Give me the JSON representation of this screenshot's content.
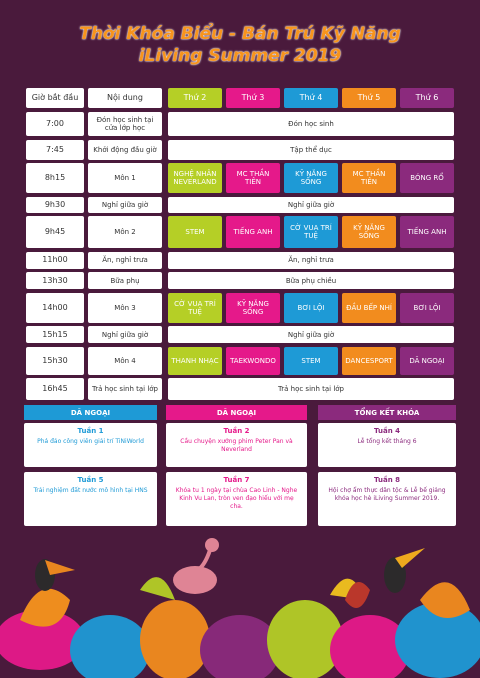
{
  "title": [
    "Thời Khóa Biểu - Bán Trú Kỹ Năng",
    "iLiving Summer 2019"
  ],
  "table": {
    "header": [
      "Giờ bắt đầu",
      "Nội dung",
      "Thứ 2",
      "Thứ 3",
      "Thứ 4",
      "Thứ 5",
      "Thứ 6"
    ],
    "rows": [
      {
        "time": "7:00",
        "content": "Đón học sinh tại cửa lớp học",
        "cells": [
          "Đón học sinh"
        ]
      },
      {
        "time": "7:45",
        "content": "Khởi động đầu giờ",
        "cells": [
          "Tập thể dục"
        ]
      },
      {
        "time": "8h15",
        "content": "Môn 1",
        "cells": [
          "NGHỆ NHÂN NEVERLAND",
          "MC THẦN TIÊN",
          "KỸ NĂNG SỐNG",
          "MC THẦN TIÊN",
          "BÓNG RỔ"
        ]
      },
      {
        "time": "9h30",
        "content": "Nghỉ giữa giờ",
        "cells": [
          "Nghỉ giữa giờ"
        ]
      },
      {
        "time": "9h45",
        "content": "Môn 2",
        "cells": [
          "STEM",
          "TIẾNG ANH",
          "CỜ VUA TRÍ TUỆ",
          "KỸ NĂNG SỐNG",
          "TIẾNG ANH"
        ]
      },
      {
        "time": "11h00",
        "content": "Ăn, nghỉ trưa",
        "cells": [
          "Ăn, nghỉ trưa"
        ]
      },
      {
        "time": "13h30",
        "content": "Bữa phụ",
        "cells": [
          "Bữa phụ chiều"
        ]
      },
      {
        "time": "14h00",
        "content": "Môn 3",
        "cells": [
          "CỜ VUA TRÍ TUỆ",
          "KỸ NĂNG SỐNG",
          "BƠI LỘI",
          "ĐẦU BẾP NHÍ",
          "BƠI LỘI"
        ]
      },
      {
        "time": "15h15",
        "content": "Nghỉ giữa giờ",
        "cells": [
          "Nghỉ giữa giờ"
        ]
      },
      {
        "time": "15h30",
        "content": "Môn 4",
        "cells": [
          "THANH NHẠC",
          "TAEKWONDO",
          "STEM",
          "DANCESPORT",
          "DÃ NGOẠI"
        ]
      },
      {
        "time": "16h45",
        "content": "Trả học sinh tại lớp",
        "cells": [
          "Trả học sinh tại lớp"
        ]
      }
    ]
  },
  "activities": [
    {
      "header": "DÃ NGOẠI",
      "weeks": [
        {
          "title": "Tuần 1",
          "text": "Phá đảo công viên giải trí TiNiWorld"
        },
        {
          "title": "Tuần 5",
          "text": "Trải nghiệm đất nước mô hình tại HNS"
        }
      ]
    },
    {
      "header": "DÃ NGOẠI",
      "weeks": [
        {
          "title": "Tuần 2",
          "text": "Cầu chuyện xướng phim Peter Pan và Neverland"
        },
        {
          "title": "Tuần 7",
          "text": "Khóa tu 1 ngày tại chùa Cao Linh - Nghe Kinh Vu Lan, tròn ven đạo hiếu với mẹ cha."
        }
      ]
    },
    {
      "header": "TỔNG KẾT KHÓA",
      "weeks": [
        {
          "title": "Tuần 4",
          "text": "Lễ tổng kết tháng 6"
        },
        {
          "title": "Tuần 8",
          "text": "Hội chợ ẩm thực dân tộc & Lễ bế giảng khóa học hè iLiving Summer 2019."
        }
      ]
    }
  ]
}
